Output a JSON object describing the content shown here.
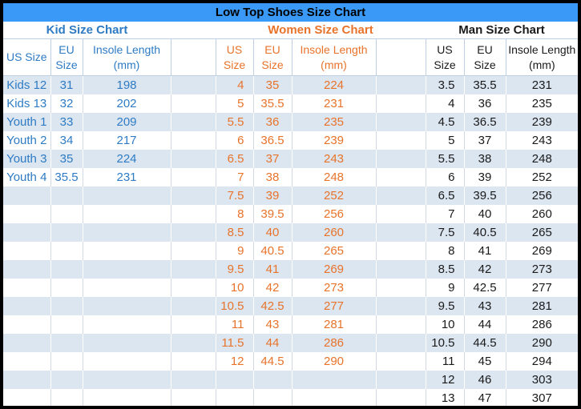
{
  "chart_data": {
    "type": "table",
    "title": "Low Top Shoes Size Chart",
    "total_data_rows": 18,
    "sections": [
      {
        "id": "kid",
        "name": "Kid Size Chart",
        "columns": [
          "US Size",
          "EU Size",
          "Insole Length (mm)"
        ],
        "header_lines": [
          [
            "US Size"
          ],
          [
            "EU",
            "Size"
          ],
          [
            "Insole Length",
            "(mm)"
          ]
        ],
        "rows": [
          [
            "Kids 12",
            "31",
            "198"
          ],
          [
            "Kids 13",
            "32",
            "202"
          ],
          [
            "Youth 1",
            "33",
            "209"
          ],
          [
            "Youth 2",
            "34",
            "217"
          ],
          [
            "Youth 3",
            "35",
            "224"
          ],
          [
            "Youth 4",
            "35.5",
            "231"
          ]
        ]
      },
      {
        "id": "women",
        "name": "Women Size Chart",
        "columns": [
          "US Size",
          "EU Size",
          "Insole Length (mm)"
        ],
        "header_lines": [
          [
            "US",
            "Size"
          ],
          [
            "EU",
            "Size"
          ],
          [
            "Insole Length",
            "(mm)"
          ]
        ],
        "rows": [
          [
            "4",
            "35",
            "224"
          ],
          [
            "5",
            "35.5",
            "231"
          ],
          [
            "5.5",
            "36",
            "235"
          ],
          [
            "6",
            "36.5",
            "239"
          ],
          [
            "6.5",
            "37",
            "243"
          ],
          [
            "7",
            "38",
            "248"
          ],
          [
            "7.5",
            "39",
            "252"
          ],
          [
            "8",
            "39.5",
            "256"
          ],
          [
            "8.5",
            "40",
            "260"
          ],
          [
            "9",
            "40.5",
            "265"
          ],
          [
            "9.5",
            "41",
            "269"
          ],
          [
            "10",
            "42",
            "273"
          ],
          [
            "10.5",
            "42.5",
            "277"
          ],
          [
            "11",
            "43",
            "281"
          ],
          [
            "11.5",
            "44",
            "286"
          ],
          [
            "12",
            "44.5",
            "290"
          ]
        ]
      },
      {
        "id": "man",
        "name": "Man Size Chart",
        "columns": [
          "US Size",
          "EU Size",
          "Insole Length (mm)"
        ],
        "header_lines": [
          [
            "US",
            "Size"
          ],
          [
            "EU",
            "Size"
          ],
          [
            "Insole Length",
            "(mm)"
          ]
        ],
        "rows": [
          [
            "3.5",
            "35.5",
            "231"
          ],
          [
            "4",
            "36",
            "235"
          ],
          [
            "4.5",
            "36.5",
            "239"
          ],
          [
            "5",
            "37",
            "243"
          ],
          [
            "5.5",
            "38",
            "248"
          ],
          [
            "6",
            "39",
            "252"
          ],
          [
            "6.5",
            "39.5",
            "256"
          ],
          [
            "7",
            "40",
            "260"
          ],
          [
            "7.5",
            "40.5",
            "265"
          ],
          [
            "8",
            "41",
            "269"
          ],
          [
            "8.5",
            "42",
            "273"
          ],
          [
            "9",
            "42.5",
            "277"
          ],
          [
            "9.5",
            "43",
            "281"
          ],
          [
            "10",
            "44",
            "286"
          ],
          [
            "10.5",
            "44.5",
            "290"
          ],
          [
            "11",
            "45",
            "294"
          ],
          [
            "12",
            "46",
            "303"
          ],
          [
            "13",
            "47",
            "307"
          ]
        ]
      }
    ]
  },
  "colors": {
    "title_bar_bg": "#3A99F6",
    "title_text": "#000000",
    "kid_text": "#2E7BC4",
    "women_text": "#E8732A",
    "man_text": "#1A1A1A",
    "stripe": "#DCE6F1",
    "grid_header": "#BFCFE3",
    "grid_data": "#D3D9E3",
    "outer_border": "#000000"
  }
}
